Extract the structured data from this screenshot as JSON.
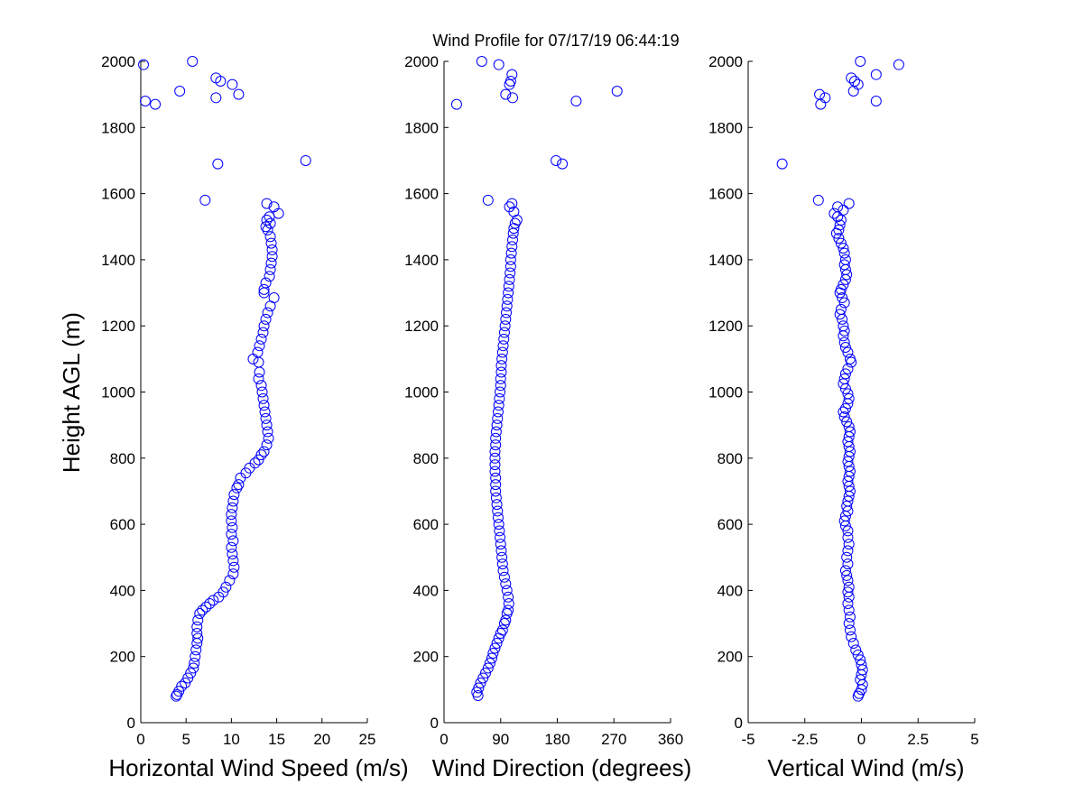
{
  "title": "Wind Profile for  07/17/19 06:44:19",
  "ylabel": "Height AGL (m)",
  "colors": {
    "marker": "#0000ff",
    "axis": "#000000",
    "background": "#ffffff"
  },
  "chart_data": [
    {
      "type": "scatter",
      "xlabel": "Horizontal Wind Speed (m/s)",
      "ylabel": "Height AGL (m)",
      "xlim": [
        0,
        25
      ],
      "ylim": [
        0,
        2000
      ],
      "xticks": [
        0,
        5,
        10,
        15,
        20,
        25
      ],
      "xtick_labels": [
        "0",
        "5",
        "10",
        "15",
        "20",
        "25"
      ],
      "yticks": [
        0,
        200,
        400,
        600,
        800,
        1000,
        1200,
        1400,
        1600,
        1800,
        2000
      ],
      "ytick_labels": [
        "0",
        "200",
        "400",
        "600",
        "800",
        "1000",
        "1200",
        "1400",
        "1600",
        "1800",
        "2000"
      ],
      "grid": false,
      "points": [
        [
          0.3,
          1990
        ],
        [
          5.7,
          2000
        ],
        [
          8.3,
          1950
        ],
        [
          8.8,
          1940
        ],
        [
          10.1,
          1930
        ],
        [
          4.3,
          1910
        ],
        [
          10.8,
          1900
        ],
        [
          8.3,
          1890
        ],
        [
          0.5,
          1880
        ],
        [
          1.6,
          1870
        ],
        [
          18.2,
          1700
        ],
        [
          8.5,
          1690
        ],
        [
          7.1,
          1580
        ],
        [
          13.9,
          1570
        ],
        [
          14.7,
          1560
        ],
        [
          15.2,
          1540
        ],
        [
          14.2,
          1530
        ],
        [
          13.9,
          1520
        ],
        [
          14.3,
          1510
        ],
        [
          13.8,
          1500
        ],
        [
          14.0,
          1490
        ],
        [
          14.3,
          1470
        ],
        [
          14.4,
          1450
        ],
        [
          14.5,
          1430
        ],
        [
          14.5,
          1410
        ],
        [
          14.4,
          1390
        ],
        [
          14.3,
          1370
        ],
        [
          14.2,
          1350
        ],
        [
          13.8,
          1330
        ],
        [
          13.6,
          1310
        ],
        [
          13.6,
          1300
        ],
        [
          14.7,
          1285
        ],
        [
          14.3,
          1260
        ],
        [
          14.0,
          1240
        ],
        [
          13.8,
          1220
        ],
        [
          13.6,
          1200
        ],
        [
          13.5,
          1180
        ],
        [
          13.3,
          1160
        ],
        [
          13.1,
          1140
        ],
        [
          12.9,
          1120
        ],
        [
          12.4,
          1100
        ],
        [
          13.0,
          1090
        ],
        [
          13.1,
          1060
        ],
        [
          13.0,
          1040
        ],
        [
          13.3,
          1020
        ],
        [
          13.4,
          1000
        ],
        [
          13.5,
          980
        ],
        [
          13.6,
          960
        ],
        [
          13.7,
          940
        ],
        [
          13.8,
          920
        ],
        [
          13.9,
          900
        ],
        [
          14.0,
          880
        ],
        [
          14.1,
          860
        ],
        [
          13.9,
          840
        ],
        [
          13.6,
          820
        ],
        [
          13.3,
          810
        ],
        [
          13.0,
          795
        ],
        [
          12.6,
          785
        ],
        [
          12.0,
          770
        ],
        [
          11.6,
          755
        ],
        [
          11.0,
          740
        ],
        [
          10.8,
          720
        ],
        [
          10.6,
          710
        ],
        [
          10.3,
          690
        ],
        [
          10.2,
          670
        ],
        [
          10.1,
          650
        ],
        [
          10.0,
          630
        ],
        [
          10.0,
          610
        ],
        [
          10.1,
          590
        ],
        [
          10.0,
          570
        ],
        [
          10.2,
          550
        ],
        [
          10.0,
          530
        ],
        [
          10.1,
          510
        ],
        [
          10.2,
          490
        ],
        [
          10.3,
          470
        ],
        [
          10.2,
          450
        ],
        [
          9.8,
          430
        ],
        [
          9.4,
          410
        ],
        [
          9.1,
          395
        ],
        [
          8.6,
          380
        ],
        [
          8.0,
          370
        ],
        [
          7.6,
          360
        ],
        [
          7.2,
          350
        ],
        [
          6.8,
          340
        ],
        [
          6.5,
          330
        ],
        [
          6.3,
          310
        ],
        [
          6.2,
          290
        ],
        [
          6.2,
          270
        ],
        [
          6.3,
          255
        ],
        [
          6.2,
          240
        ],
        [
          6.1,
          220
        ],
        [
          6.0,
          200
        ],
        [
          5.9,
          180
        ],
        [
          5.8,
          165
        ],
        [
          5.5,
          150
        ],
        [
          5.2,
          135
        ],
        [
          4.9,
          120
        ],
        [
          4.5,
          110
        ],
        [
          4.2,
          95
        ],
        [
          4.0,
          85
        ],
        [
          3.9,
          80
        ]
      ]
    },
    {
      "type": "scatter",
      "xlabel": "Wind Direction (degrees)",
      "ylabel": "",
      "xlim": [
        0,
        360
      ],
      "ylim": [
        0,
        2000
      ],
      "xticks": [
        0,
        90,
        180,
        270,
        360
      ],
      "xtick_labels": [
        "0",
        "90",
        "180",
        "270",
        "360"
      ],
      "yticks": [
        0,
        200,
        400,
        600,
        800,
        1000,
        1200,
        1400,
        1600,
        1800,
        2000
      ],
      "ytick_labels": [
        "0",
        "200",
        "400",
        "600",
        "800",
        "1000",
        "1200",
        "1400",
        "1600",
        "1800",
        "2000"
      ],
      "grid": false,
      "points": [
        [
          60,
          2000
        ],
        [
          87,
          1990
        ],
        [
          108,
          1960
        ],
        [
          106,
          1940
        ],
        [
          104,
          1930
        ],
        [
          275,
          1910
        ],
        [
          98,
          1900
        ],
        [
          109,
          1890
        ],
        [
          210,
          1880
        ],
        [
          20,
          1870
        ],
        [
          178,
          1700
        ],
        [
          188,
          1690
        ],
        [
          70,
          1580
        ],
        [
          108,
          1570
        ],
        [
          104,
          1560
        ],
        [
          111,
          1545
        ],
        [
          116,
          1520
        ],
        [
          113,
          1510
        ],
        [
          111,
          1495
        ],
        [
          110,
          1480
        ],
        [
          109,
          1460
        ],
        [
          108,
          1440
        ],
        [
          107,
          1420
        ],
        [
          106,
          1400
        ],
        [
          106,
          1380
        ],
        [
          105,
          1360
        ],
        [
          104,
          1340
        ],
        [
          103,
          1320
        ],
        [
          102,
          1300
        ],
        [
          101,
          1280
        ],
        [
          100,
          1260
        ],
        [
          99,
          1240
        ],
        [
          98,
          1220
        ],
        [
          97,
          1200
        ],
        [
          96,
          1180
        ],
        [
          95,
          1160
        ],
        [
          94,
          1140
        ],
        [
          93,
          1120
        ],
        [
          92,
          1100
        ],
        [
          91,
          1080
        ],
        [
          91,
          1060
        ],
        [
          90,
          1040
        ],
        [
          90,
          1020
        ],
        [
          89,
          1000
        ],
        [
          88,
          980
        ],
        [
          87,
          960
        ],
        [
          86,
          940
        ],
        [
          85,
          920
        ],
        [
          84,
          900
        ],
        [
          83,
          880
        ],
        [
          82,
          860
        ],
        [
          82,
          840
        ],
        [
          81,
          820
        ],
        [
          81,
          800
        ],
        [
          81,
          780
        ],
        [
          81,
          760
        ],
        [
          82,
          740
        ],
        [
          82,
          720
        ],
        [
          82,
          700
        ],
        [
          83,
          680
        ],
        [
          84,
          660
        ],
        [
          85,
          640
        ],
        [
          86,
          620
        ],
        [
          87,
          600
        ],
        [
          88,
          580
        ],
        [
          89,
          560
        ],
        [
          90,
          540
        ],
        [
          91,
          520
        ],
        [
          92,
          500
        ],
        [
          93,
          480
        ],
        [
          94,
          460
        ],
        [
          96,
          440
        ],
        [
          98,
          420
        ],
        [
          100,
          400
        ],
        [
          102,
          380
        ],
        [
          103,
          360
        ],
        [
          102,
          340
        ],
        [
          100,
          330
        ],
        [
          98,
          310
        ],
        [
          96,
          300
        ],
        [
          93,
          280
        ],
        [
          90,
          270
        ],
        [
          87,
          255
        ],
        [
          84,
          240
        ],
        [
          81,
          225
        ],
        [
          78,
          210
        ],
        [
          76,
          195
        ],
        [
          73,
          180
        ],
        [
          70,
          165
        ],
        [
          66,
          150
        ],
        [
          62,
          135
        ],
        [
          58,
          120
        ],
        [
          55,
          105
        ],
        [
          52,
          92
        ],
        [
          54,
          82
        ]
      ]
    },
    {
      "type": "scatter",
      "xlabel": "Vertical Wind (m/s)",
      "ylabel": "",
      "xlim": [
        -5,
        5
      ],
      "ylim": [
        0,
        2000
      ],
      "xticks": [
        -5,
        -2.5,
        0,
        2.5,
        5
      ],
      "xtick_labels": [
        "-5",
        "-2.5",
        "0",
        "2.5",
        "5"
      ],
      "yticks": [
        0,
        200,
        400,
        600,
        800,
        1000,
        1200,
        1400,
        1600,
        1800,
        2000
      ],
      "ytick_labels": [
        "0",
        "200",
        "400",
        "600",
        "800",
        "1000",
        "1200",
        "1400",
        "1600",
        "1800",
        "2000"
      ],
      "grid": false,
      "points": [
        [
          -0.05,
          2000
        ],
        [
          1.65,
          1990
        ],
        [
          0.65,
          1960
        ],
        [
          -0.45,
          1950
        ],
        [
          -0.3,
          1940
        ],
        [
          -0.15,
          1930
        ],
        [
          -0.35,
          1910
        ],
        [
          -1.85,
          1900
        ],
        [
          -1.6,
          1890
        ],
        [
          0.65,
          1880
        ],
        [
          -1.8,
          1870
        ],
        [
          -3.5,
          1690
        ],
        [
          -1.9,
          1580
        ],
        [
          -0.55,
          1570
        ],
        [
          -1.05,
          1560
        ],
        [
          -0.8,
          1550
        ],
        [
          -1.2,
          1540
        ],
        [
          -1.05,
          1530
        ],
        [
          -0.9,
          1520
        ],
        [
          -0.95,
          1505
        ],
        [
          -1.0,
          1490
        ],
        [
          -1.1,
          1480
        ],
        [
          -1.0,
          1465
        ],
        [
          -0.9,
          1450
        ],
        [
          -0.8,
          1435
        ],
        [
          -0.75,
          1420
        ],
        [
          -0.7,
          1400
        ],
        [
          -0.75,
          1385
        ],
        [
          -0.7,
          1370
        ],
        [
          -0.65,
          1355
        ],
        [
          -0.7,
          1340
        ],
        [
          -0.8,
          1325
        ],
        [
          -0.9,
          1310
        ],
        [
          -0.95,
          1300
        ],
        [
          -0.85,
          1285
        ],
        [
          -0.75,
          1270
        ],
        [
          -0.9,
          1250
        ],
        [
          -0.95,
          1235
        ],
        [
          -0.85,
          1220
        ],
        [
          -0.8,
          1200
        ],
        [
          -0.75,
          1185
        ],
        [
          -0.8,
          1170
        ],
        [
          -0.75,
          1150
        ],
        [
          -0.7,
          1135
        ],
        [
          -0.6,
          1120
        ],
        [
          -0.5,
          1100
        ],
        [
          -0.45,
          1090
        ],
        [
          -0.6,
          1070
        ],
        [
          -0.7,
          1055
        ],
        [
          -0.75,
          1040
        ],
        [
          -0.8,
          1025
        ],
        [
          -0.7,
          1010
        ],
        [
          -0.6,
          995
        ],
        [
          -0.55,
          980
        ],
        [
          -0.6,
          965
        ],
        [
          -0.7,
          950
        ],
        [
          -0.8,
          940
        ],
        [
          -0.75,
          925
        ],
        [
          -0.65,
          910
        ],
        [
          -0.55,
          895
        ],
        [
          -0.5,
          880
        ],
        [
          -0.55,
          865
        ],
        [
          -0.6,
          850
        ],
        [
          -0.55,
          835
        ],
        [
          -0.5,
          820
        ],
        [
          -0.55,
          805
        ],
        [
          -0.6,
          790
        ],
        [
          -0.55,
          775
        ],
        [
          -0.5,
          760
        ],
        [
          -0.55,
          745
        ],
        [
          -0.6,
          730
        ],
        [
          -0.55,
          715
        ],
        [
          -0.5,
          700
        ],
        [
          -0.55,
          685
        ],
        [
          -0.6,
          670
        ],
        [
          -0.65,
          655
        ],
        [
          -0.6,
          640
        ],
        [
          -0.7,
          625
        ],
        [
          -0.75,
          610
        ],
        [
          -0.7,
          595
        ],
        [
          -0.6,
          580
        ],
        [
          -0.6,
          560
        ],
        [
          -0.55,
          540
        ],
        [
          -0.6,
          520
        ],
        [
          -0.65,
          500
        ],
        [
          -0.6,
          480
        ],
        [
          -0.7,
          460
        ],
        [
          -0.65,
          445
        ],
        [
          -0.6,
          430
        ],
        [
          -0.55,
          410
        ],
        [
          -0.6,
          395
        ],
        [
          -0.55,
          380
        ],
        [
          -0.6,
          360
        ],
        [
          -0.55,
          340
        ],
        [
          -0.5,
          320
        ],
        [
          -0.55,
          300
        ],
        [
          -0.5,
          280
        ],
        [
          -0.45,
          260
        ],
        [
          -0.35,
          240
        ],
        [
          -0.25,
          220
        ],
        [
          -0.15,
          205
        ],
        [
          -0.05,
          190
        ],
        [
          0,
          175
        ],
        [
          0.05,
          160
        ],
        [
          0,
          145
        ],
        [
          -0.05,
          130
        ],
        [
          0.05,
          115
        ],
        [
          0,
          100
        ],
        [
          -0.1,
          88
        ],
        [
          -0.15,
          80
        ]
      ]
    }
  ]
}
